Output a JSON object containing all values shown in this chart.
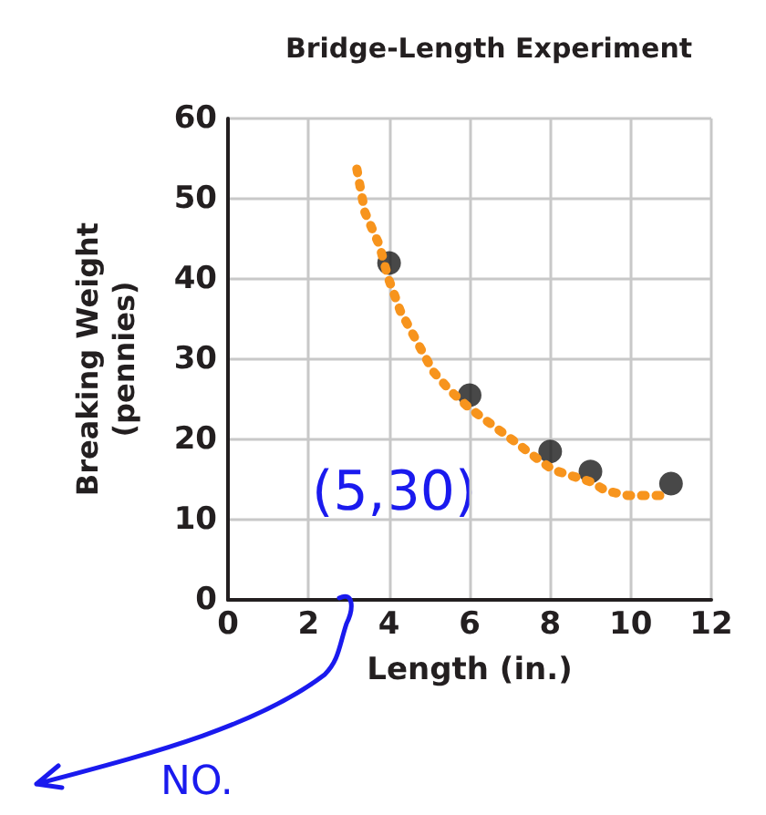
{
  "chart_data": {
    "type": "scatter",
    "title": "Bridge-Length Experiment",
    "xlabel": "Length (in.)",
    "ylabel": "Breaking Weight\n(pennies)",
    "series": [
      {
        "color": "#1a1a1a",
        "x": [
          4,
          6,
          8,
          9,
          11
        ],
        "values": [
          42,
          25.5,
          18.5,
          16,
          14.5
        ],
        "marker": "circle"
      },
      {
        "type": "line",
        "color": "#f7941d",
        "line_style": "dotted",
        "x": [
          3.2,
          3.4,
          3.76,
          3.98,
          4.28,
          5.09,
          5.51,
          5.97,
          7.1,
          7.57,
          8.07,
          9.02,
          9.38,
          9.94,
          10.8
        ],
        "values": [
          53.7,
          48.3,
          44.2,
          40.1,
          36,
          28.5,
          26.1,
          24,
          19.8,
          18,
          16.2,
          14.7,
          13.6,
          13,
          13
        ]
      }
    ],
    "xlim": [
      0,
      12
    ],
    "xticks": [
      0,
      2,
      4,
      6,
      8,
      10,
      12
    ],
    "ylim": [
      0,
      60
    ],
    "yticks": [
      0,
      10,
      20,
      30,
      40,
      50,
      60
    ],
    "grid": true,
    "annotations": [
      "(5,30)",
      "NO."
    ]
  }
}
